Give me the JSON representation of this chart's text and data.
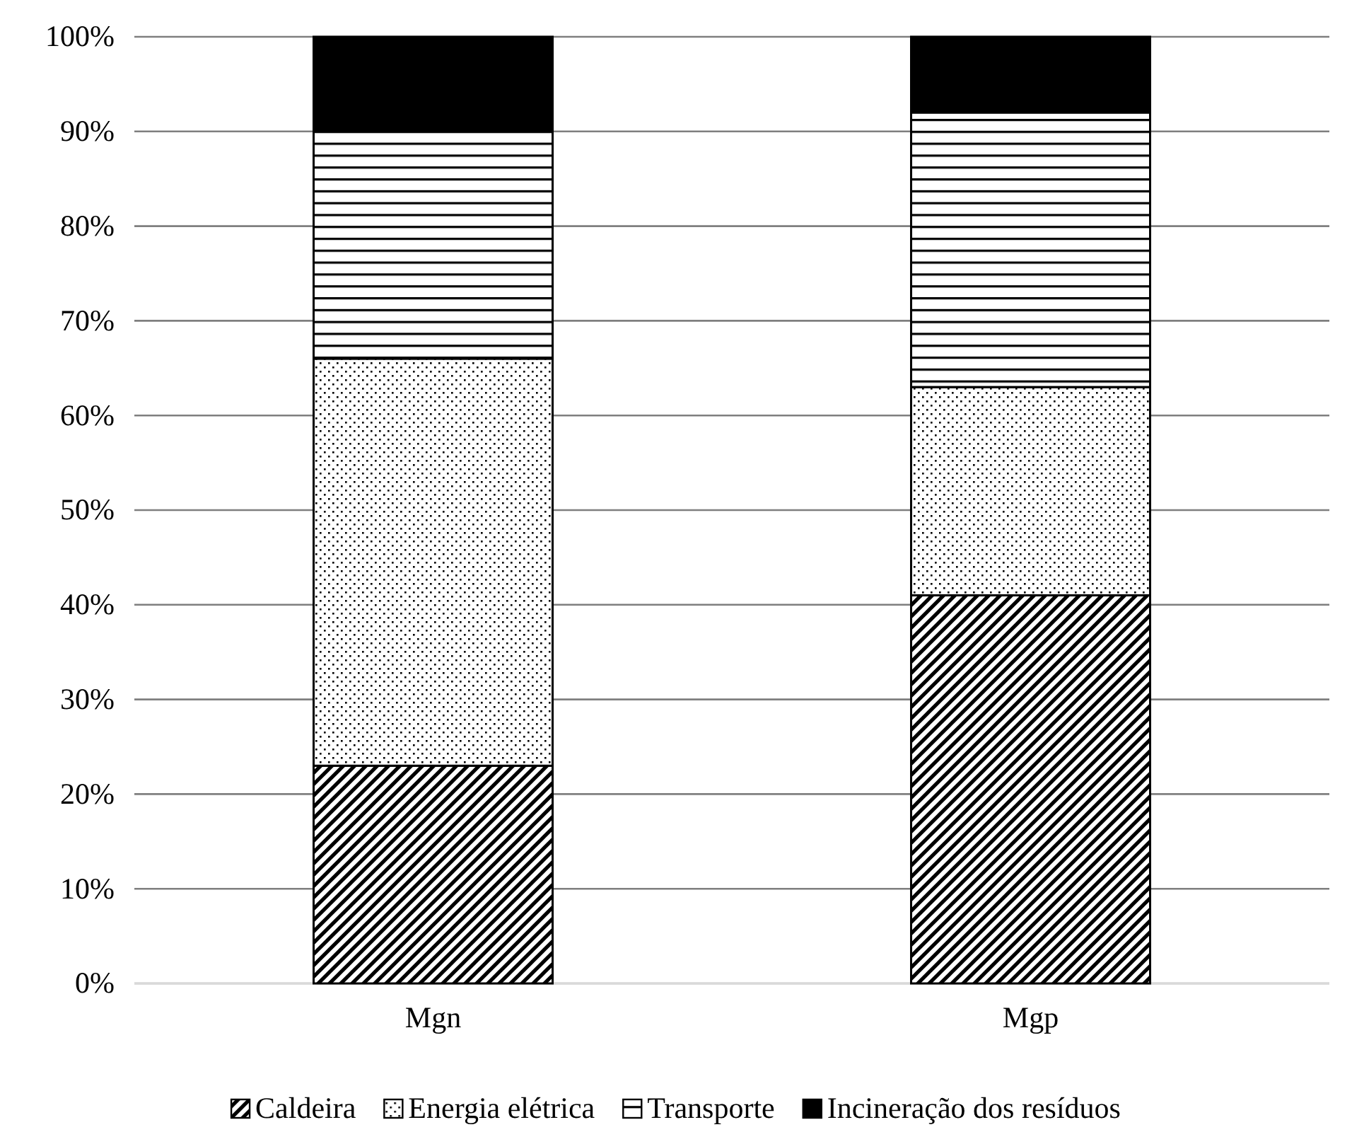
{
  "chart_data": {
    "type": "bar",
    "stacked": true,
    "categories": [
      "Mgn",
      "Mgp"
    ],
    "series": [
      {
        "name": "Caldeira",
        "color": "#000000",
        "values": [
          23,
          41
        ]
      },
      {
        "name": "Energia elétrica",
        "color": "#000000",
        "values": [
          43,
          22
        ]
      },
      {
        "name": "Transporte",
        "color": "#000000",
        "values": [
          24,
          29
        ]
      },
      {
        "name": "Incineração dos resíduos",
        "color": "#000000",
        "values": [
          10,
          8
        ]
      }
    ],
    "ylim": [
      0,
      100
    ],
    "yticks": [
      {
        "value": 0,
        "label": "0%"
      },
      {
        "value": 10,
        "label": "10%"
      },
      {
        "value": 20,
        "label": "20%"
      },
      {
        "value": 30,
        "label": "30%"
      },
      {
        "value": 40,
        "label": "40%"
      },
      {
        "value": 50,
        "label": "50%"
      },
      {
        "value": 60,
        "label": "60%"
      },
      {
        "value": 70,
        "label": "70%"
      },
      {
        "value": 80,
        "label": "80%"
      },
      {
        "value": 90,
        "label": "90%"
      },
      {
        "value": 100,
        "label": "100%"
      }
    ],
    "grid": "y",
    "legend": "bottom"
  }
}
